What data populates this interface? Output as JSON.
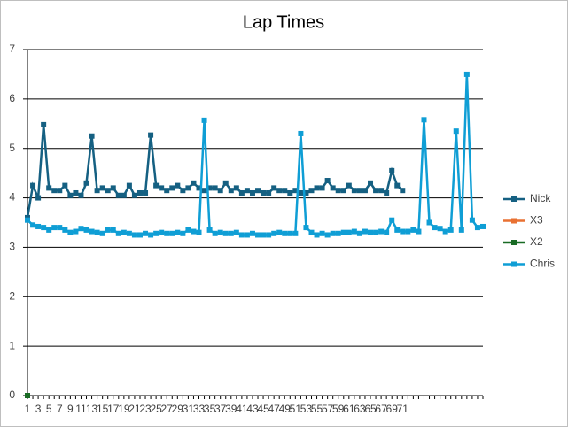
{
  "chart_data": {
    "type": "line",
    "title": "Lap Times",
    "categories": [
      "1",
      null,
      "3",
      null,
      "5",
      null,
      "7",
      null,
      "9",
      null,
      "11",
      null,
      "13",
      null,
      "15",
      null,
      "17",
      null,
      "19",
      null,
      "21",
      null,
      "23",
      null,
      "25",
      null,
      "27",
      null,
      "29",
      null,
      "31",
      null,
      "33",
      null,
      "35",
      null,
      "37",
      null,
      "39",
      null,
      "41",
      null,
      "43",
      null,
      "45",
      null,
      "47",
      null,
      "49",
      null,
      "51",
      null,
      "53",
      null,
      "55",
      null,
      "57",
      null,
      "59",
      null,
      "61",
      null,
      "63",
      null,
      "65",
      null,
      "67",
      null,
      "69",
      null,
      "71",
      null,
      null,
      null,
      null,
      null,
      null,
      null,
      null,
      null,
      null,
      null,
      null,
      null,
      null,
      null
    ],
    "series": [
      {
        "name": "Nick",
        "color": "#156082",
        "values": [
          3.6,
          4.25,
          4.0,
          5.48,
          4.2,
          4.15,
          4.15,
          4.25,
          4.05,
          4.1,
          4.05,
          4.3,
          5.25,
          4.15,
          4.2,
          4.15,
          4.2,
          4.05,
          4.05,
          4.25,
          4.05,
          4.1,
          4.1,
          5.27,
          4.25,
          4.2,
          4.15,
          4.2,
          4.25,
          4.15,
          4.2,
          4.3,
          4.2,
          4.15,
          4.2,
          4.2,
          4.15,
          4.3,
          4.15,
          4.2,
          4.1,
          4.15,
          4.1,
          4.15,
          4.1,
          4.1,
          4.2,
          4.15,
          4.15,
          4.1,
          4.15,
          4.1,
          4.1,
          4.15,
          4.2,
          4.2,
          4.35,
          4.2,
          4.15,
          4.15,
          4.25,
          4.15,
          4.15,
          4.15,
          4.3,
          4.15,
          4.15,
          4.1,
          4.55,
          4.25,
          4.15,
          null,
          null,
          null,
          null,
          null,
          null,
          null,
          null,
          null,
          null,
          null,
          null,
          null,
          null,
          null
        ]
      },
      {
        "name": "X3",
        "color": "#e97132",
        "values": [
          0,
          null,
          null,
          null,
          null,
          null,
          null,
          null,
          null,
          null,
          null,
          null,
          null,
          null,
          null,
          null,
          null,
          null,
          null,
          null,
          null,
          null,
          null,
          null,
          null,
          null,
          null,
          null,
          null,
          null,
          null,
          null,
          null,
          null,
          null,
          null,
          null,
          null,
          null,
          null,
          null,
          null,
          null,
          null,
          null,
          null,
          null,
          null,
          null,
          null,
          null,
          null,
          null,
          null,
          null,
          null,
          null,
          null,
          null,
          null,
          null,
          null,
          null,
          null,
          null,
          null,
          null,
          null,
          null,
          null,
          null,
          null,
          null,
          null,
          null,
          null,
          null,
          null,
          null,
          null,
          null,
          null,
          null,
          null,
          null,
          null
        ]
      },
      {
        "name": "X2",
        "color": "#196b24",
        "values": [
          0,
          null,
          null,
          null,
          null,
          null,
          null,
          null,
          null,
          null,
          null,
          null,
          null,
          null,
          null,
          null,
          null,
          null,
          null,
          null,
          null,
          null,
          null,
          null,
          null,
          null,
          null,
          null,
          null,
          null,
          null,
          null,
          null,
          null,
          null,
          null,
          null,
          null,
          null,
          null,
          null,
          null,
          null,
          null,
          null,
          null,
          null,
          null,
          null,
          null,
          null,
          null,
          null,
          null,
          null,
          null,
          null,
          null,
          null,
          null,
          null,
          null,
          null,
          null,
          null,
          null,
          null,
          null,
          null,
          null,
          null,
          null,
          null,
          null,
          null,
          null,
          null,
          null,
          null,
          null,
          null,
          null,
          null,
          null,
          null,
          null
        ]
      },
      {
        "name": "Chris",
        "color": "#0f9ed5",
        "values": [
          3.55,
          3.45,
          3.42,
          3.4,
          3.35,
          3.4,
          3.4,
          3.35,
          3.3,
          3.32,
          3.38,
          3.35,
          3.32,
          3.3,
          3.28,
          3.35,
          3.35,
          3.28,
          3.3,
          3.28,
          3.25,
          3.25,
          3.28,
          3.25,
          3.28,
          3.3,
          3.28,
          3.28,
          3.3,
          3.28,
          3.35,
          3.32,
          3.3,
          5.57,
          3.35,
          3.28,
          3.3,
          3.28,
          3.28,
          3.3,
          3.25,
          3.25,
          3.28,
          3.25,
          3.25,
          3.25,
          3.28,
          3.3,
          3.28,
          3.28,
          3.28,
          5.3,
          3.4,
          3.3,
          3.25,
          3.28,
          3.25,
          3.28,
          3.28,
          3.3,
          3.3,
          3.32,
          3.28,
          3.32,
          3.3,
          3.3,
          3.32,
          3.3,
          3.55,
          3.35,
          3.32,
          3.32,
          3.35,
          3.32,
          5.58,
          3.5,
          3.4,
          3.38,
          3.32,
          3.35,
          5.35,
          3.35,
          6.5,
          3.55,
          3.4,
          3.42
        ]
      }
    ],
    "ylim": [
      0,
      7
    ],
    "yticks": [
      0,
      1,
      2,
      3,
      4,
      5,
      6,
      7
    ],
    "grid": true,
    "legend": "right"
  }
}
